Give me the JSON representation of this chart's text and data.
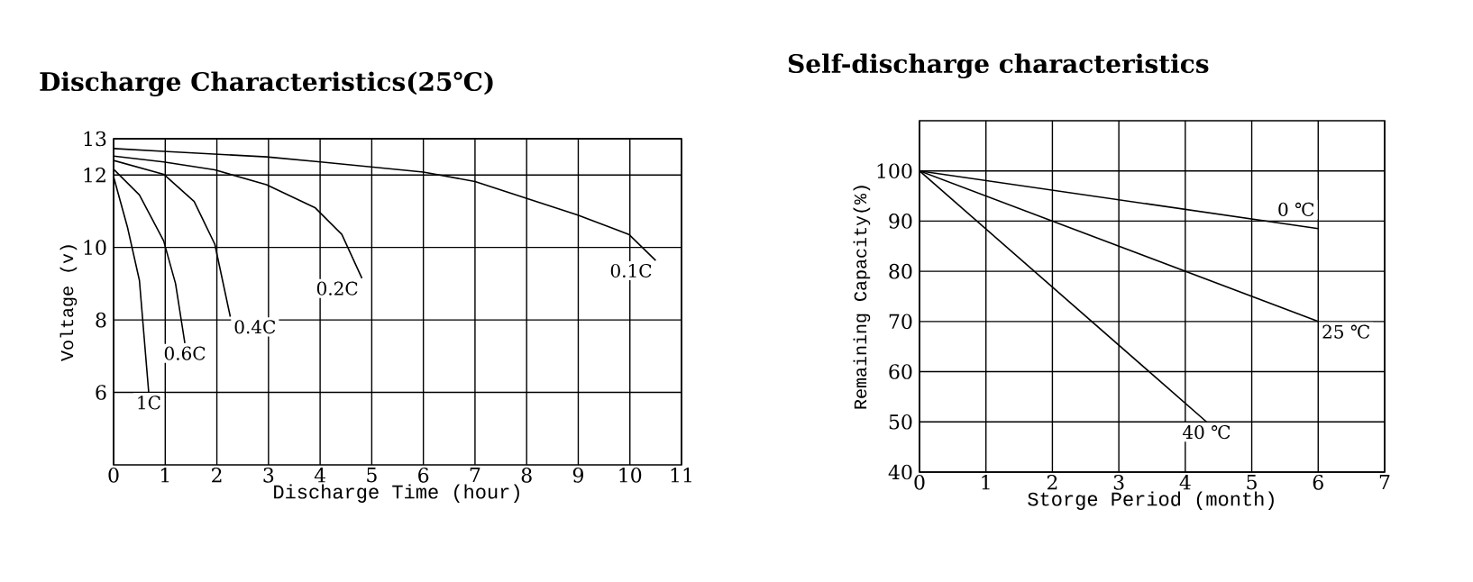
{
  "chart_data": [
    {
      "type": "line",
      "title": "Discharge Characteristics(25℃)",
      "xlabel": "Discharge Time (hour)",
      "ylabel": "Voltage (v)",
      "xlim": [
        0,
        11
      ],
      "xticks": [
        0,
        1,
        2,
        3,
        4,
        5,
        6,
        7,
        8,
        9,
        10,
        11
      ],
      "ylim": [
        4,
        13
      ],
      "yticks": [
        6,
        8,
        10,
        12,
        13
      ],
      "grid": true,
      "series": [
        {
          "name": "0.1C",
          "color": "#000000",
          "x": [
            0,
            0.97,
            2.96,
            4.01,
            6,
            7,
            7.99,
            8.98,
            9.98,
            10.5
          ],
          "values": [
            12.73,
            12.65,
            12.5,
            12.36,
            12.08,
            11.82,
            11.36,
            10.9,
            10.36,
            9.64
          ]
        },
        {
          "name": "0.2C",
          "color": "#000000",
          "x": [
            0,
            0.97,
            1.96,
            2.96,
            3.9,
            4.42,
            4.81
          ],
          "values": [
            12.52,
            12.36,
            12.14,
            11.73,
            11.1,
            10.36,
            9.15
          ]
        },
        {
          "name": "0.4C",
          "color": "#000000",
          "x": [
            0,
            0.97,
            1.56,
            1.96,
            2.26
          ],
          "values": [
            12.4,
            12.02,
            11.27,
            10.09,
            8.09
          ]
        },
        {
          "name": "0.6C",
          "color": "#000000",
          "x": [
            0,
            0.5,
            0.97,
            1.2,
            1.38
          ],
          "values": [
            12.16,
            11.45,
            10.18,
            9.0,
            7.36
          ]
        },
        {
          "name": "1C",
          "color": "#000000",
          "x": [
            0,
            0.27,
            0.5,
            0.68
          ],
          "values": [
            11.95,
            10.55,
            9.09,
            6.0
          ]
        }
      ]
    },
    {
      "type": "line",
      "title": "Self-discharge characteristics",
      "xlabel": "Storge Period (month)",
      "ylabel": "Remaining Capacity(%)",
      "xlim": [
        0,
        7
      ],
      "xticks": [
        0,
        1,
        2,
        3,
        4,
        5,
        6,
        7
      ],
      "ylim": [
        40,
        110
      ],
      "yticks": [
        40,
        50,
        60,
        70,
        80,
        90,
        100
      ],
      "grid": true,
      "series": [
        {
          "name": "0 ℃",
          "color": "#000000",
          "x": [
            0,
            6
          ],
          "values": [
            100,
            88.5
          ]
        },
        {
          "name": "25 ℃",
          "color": "#000000",
          "x": [
            0,
            6
          ],
          "values": [
            100,
            70
          ]
        },
        {
          "name": "40 ℃",
          "color": "#000000",
          "x": [
            0,
            4.32
          ],
          "values": [
            100,
            50
          ]
        }
      ]
    }
  ]
}
